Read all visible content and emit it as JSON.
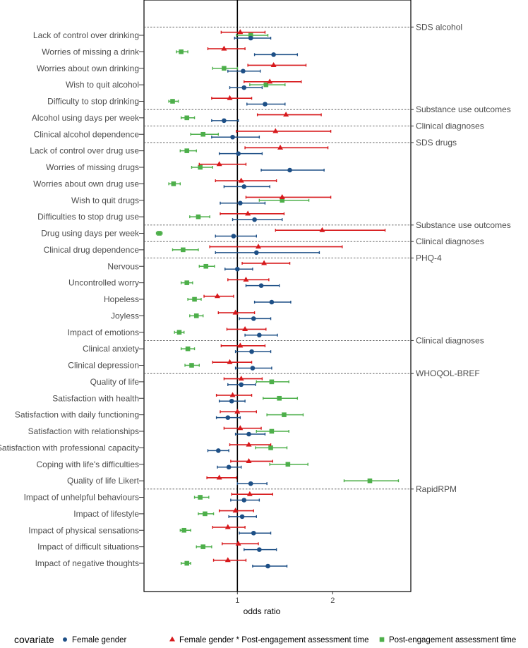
{
  "chart_data": {
    "type": "forest",
    "xlabel": "odds ratio",
    "xlim": [
      0.02,
      2.82
    ],
    "xticks": [
      "1",
      "2"
    ],
    "xtick_values": [
      1,
      2
    ],
    "reference_line": 1,
    "legend": {
      "title": "covariate",
      "placement": "bottom",
      "entries": [
        {
          "key": "blue",
          "label": "Female gender",
          "color": "#1d4f86",
          "shape": "circle"
        },
        {
          "key": "red",
          "label": "Female gender * Post-engagement assessment time",
          "color": "#d7191c",
          "shape": "triangle"
        },
        {
          "key": "green",
          "label": "Post-engagement assessment time",
          "color": "#4daf4a",
          "shape": "square"
        }
      ]
    },
    "sections": [
      {
        "label": "SDS alcohol",
        "before_row": 0
      },
      {
        "label": "Substance use outcomes",
        "before_row": 5
      },
      {
        "label": "Clinical diagnoses",
        "before_row": 6
      },
      {
        "label": "SDS drugs",
        "before_row": 7
      },
      {
        "label": "Substance use outcomes",
        "before_row": 12
      },
      {
        "label": "Clinical diagnoses",
        "before_row": 13
      },
      {
        "label": "PHQ-4",
        "before_row": 14
      },
      {
        "label": "Clinical diagnoses",
        "before_row": 19
      },
      {
        "label": "WHOQOL-BREF",
        "before_row": 21
      },
      {
        "label": "RapidRPM",
        "before_row": 28
      }
    ],
    "rows": [
      {
        "label": "Lack of control over drinking",
        "red": [
          1.03,
          0.83,
          1.29
        ],
        "green": [
          1.14,
          0.99,
          1.32
        ],
        "blue": [
          1.14,
          0.97,
          1.35
        ]
      },
      {
        "label": "Worries of missing a drink",
        "red": [
          0.86,
          0.69,
          1.08
        ],
        "green": [
          0.41,
          0.36,
          0.48
        ],
        "blue": [
          1.38,
          1.18,
          1.63
        ]
      },
      {
        "label": "Worries about own drinking",
        "red": [
          1.38,
          1.11,
          1.72
        ],
        "green": [
          0.86,
          0.74,
          1.0
        ],
        "blue": [
          1.06,
          0.9,
          1.24
        ]
      },
      {
        "label": "Wish to quit alcohol",
        "red": [
          1.34,
          1.07,
          1.67
        ],
        "green": [
          1.3,
          1.13,
          1.5
        ],
        "blue": [
          1.07,
          0.92,
          1.26
        ]
      },
      {
        "label": "Difficulty to stop drinking",
        "red": [
          0.92,
          0.73,
          1.15
        ],
        "green": [
          0.32,
          0.28,
          0.38
        ],
        "blue": [
          1.29,
          1.1,
          1.5
        ]
      },
      {
        "label": "Alcohol using days per week",
        "red": [
          1.51,
          1.21,
          1.88
        ],
        "green": [
          0.47,
          0.41,
          0.55
        ],
        "blue": [
          0.86,
          0.73,
          1.01
        ]
      },
      {
        "label": "Clinical alcohol dependence",
        "red": [
          1.4,
          0.99,
          1.98
        ],
        "green": [
          0.64,
          0.51,
          0.8
        ],
        "blue": [
          0.95,
          0.73,
          1.23
        ]
      },
      {
        "label": "Lack of control over drug use",
        "red": [
          1.45,
          1.08,
          1.95
        ],
        "green": [
          0.47,
          0.4,
          0.57
        ],
        "blue": [
          1.01,
          0.81,
          1.26
        ]
      },
      {
        "label": "Worries of missing drugs",
        "red": [
          0.81,
          0.6,
          1.09
        ],
        "green": [
          0.61,
          0.52,
          0.74
        ],
        "blue": [
          1.55,
          1.25,
          1.91
        ]
      },
      {
        "label": "Worries about own drug use",
        "red": [
          1.04,
          0.77,
          1.41
        ],
        "green": [
          0.33,
          0.28,
          0.4
        ],
        "blue": [
          1.07,
          0.86,
          1.34
        ]
      },
      {
        "label": "Wish to quit drugs",
        "red": [
          1.47,
          1.09,
          1.98
        ],
        "green": [
          1.47,
          1.23,
          1.75
        ],
        "blue": [
          1.03,
          0.82,
          1.29
        ]
      },
      {
        "label": "Difficulties to stop drug use",
        "red": [
          1.11,
          0.82,
          1.49
        ],
        "green": [
          0.59,
          0.5,
          0.71
        ],
        "blue": [
          1.18,
          0.95,
          1.47
        ]
      },
      {
        "label": "Drug using days per week",
        "red": [
          1.89,
          1.4,
          2.55
        ],
        "green": [
          0.18,
          0.15,
          0.21
        ],
        "blue": [
          0.96,
          0.77,
          1.2
        ]
      },
      {
        "label": "Clinical drug dependence",
        "red": [
          1.22,
          0.71,
          2.1
        ],
        "green": [
          0.43,
          0.32,
          0.59
        ],
        "blue": [
          1.2,
          0.77,
          1.86
        ]
      },
      {
        "label": "Nervous",
        "red": [
          1.28,
          1.05,
          1.55
        ],
        "green": [
          0.67,
          0.6,
          0.76
        ],
        "blue": [
          1.0,
          0.87,
          1.16
        ]
      },
      {
        "label": "Uncontrolled worry",
        "red": [
          1.09,
          0.9,
          1.33
        ],
        "green": [
          0.47,
          0.41,
          0.53
        ],
        "blue": [
          1.25,
          1.09,
          1.44
        ]
      },
      {
        "label": "Hopeless",
        "red": [
          0.79,
          0.65,
          0.96
        ],
        "green": [
          0.55,
          0.48,
          0.62
        ],
        "blue": [
          1.36,
          1.18,
          1.56
        ]
      },
      {
        "label": "Joyless",
        "red": [
          0.98,
          0.8,
          1.18
        ],
        "green": [
          0.57,
          0.5,
          0.64
        ],
        "blue": [
          1.17,
          1.02,
          1.35
        ]
      },
      {
        "label": "Impact of emotions",
        "red": [
          1.08,
          0.89,
          1.3
        ],
        "green": [
          0.39,
          0.34,
          0.44
        ],
        "blue": [
          1.23,
          1.08,
          1.42
        ]
      },
      {
        "label": "Clinical anxiety",
        "red": [
          1.03,
          0.83,
          1.29
        ],
        "green": [
          0.48,
          0.41,
          0.55
        ],
        "blue": [
          1.15,
          0.98,
          1.35
        ]
      },
      {
        "label": "Clinical depression",
        "red": [
          0.92,
          0.74,
          1.15
        ],
        "green": [
          0.52,
          0.45,
          0.6
        ],
        "blue": [
          1.16,
          0.98,
          1.36
        ]
      },
      {
        "label": "Quality of life",
        "red": [
          1.04,
          0.86,
          1.26
        ],
        "green": [
          1.36,
          1.2,
          1.54
        ],
        "blue": [
          1.04,
          0.9,
          1.19
        ]
      },
      {
        "label": "Satisfaction with health",
        "red": [
          0.95,
          0.78,
          1.15
        ],
        "green": [
          1.44,
          1.27,
          1.63
        ],
        "blue": [
          0.94,
          0.81,
          1.08
        ]
      },
      {
        "label": "Satisfaction with daily functioning",
        "red": [
          1.0,
          0.82,
          1.2
        ],
        "green": [
          1.49,
          1.31,
          1.69
        ],
        "blue": [
          0.9,
          0.78,
          1.03
        ]
      },
      {
        "label": "Satisfaction with relationships",
        "red": [
          1.03,
          0.86,
          1.25
        ],
        "green": [
          1.36,
          1.2,
          1.54
        ],
        "blue": [
          1.12,
          0.98,
          1.29
        ]
      },
      {
        "label": "Satisfaction with professional capacity",
        "red": [
          1.12,
          0.92,
          1.35
        ],
        "green": [
          1.35,
          1.19,
          1.52
        ],
        "blue": [
          0.8,
          0.69,
          0.91
        ]
      },
      {
        "label": "Coping with life's difficulties",
        "red": [
          1.12,
          0.93,
          1.37
        ],
        "green": [
          1.53,
          1.34,
          1.74
        ],
        "blue": [
          0.91,
          0.79,
          1.04
        ]
      },
      {
        "label": "Quality of life Likert",
        "red": [
          0.81,
          0.68,
          0.99
        ],
        "green": [
          2.39,
          2.12,
          2.69
        ],
        "blue": [
          1.14,
          1.0,
          1.31
        ]
      },
      {
        "label": "Impact of unhelpful behaviours",
        "red": [
          1.13,
          0.94,
          1.37
        ],
        "green": [
          0.61,
          0.55,
          0.7
        ],
        "blue": [
          1.07,
          0.93,
          1.23
        ]
      },
      {
        "label": "Impact of lifestyle",
        "red": [
          0.98,
          0.81,
          1.17
        ],
        "green": [
          0.66,
          0.59,
          0.75
        ],
        "blue": [
          1.05,
          0.91,
          1.2
        ]
      },
      {
        "label": "Impact of physical sensations",
        "red": [
          0.9,
          0.74,
          1.08
        ],
        "green": [
          0.44,
          0.4,
          0.51
        ],
        "blue": [
          1.17,
          1.02,
          1.35
        ]
      },
      {
        "label": "Impact of difficult situations",
        "red": [
          1.01,
          0.84,
          1.22
        ],
        "green": [
          0.64,
          0.57,
          0.73
        ],
        "blue": [
          1.23,
          1.07,
          1.41
        ]
      },
      {
        "label": "Impact of negative thoughts",
        "red": [
          0.9,
          0.75,
          1.09
        ],
        "green": [
          0.47,
          0.41,
          0.51
        ],
        "blue": [
          1.32,
          1.16,
          1.52
        ]
      }
    ]
  }
}
